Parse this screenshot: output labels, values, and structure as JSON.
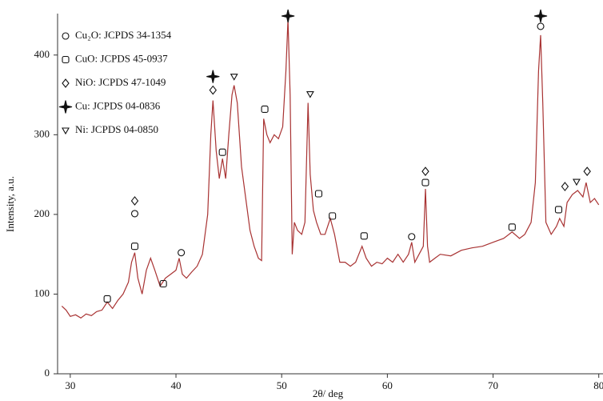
{
  "chart_data": {
    "type": "line",
    "x_label": "2θ/ deg",
    "y_label": "Intensity, a.u.",
    "xlim": [
      28.8,
      80.4
    ],
    "ylim": [
      0,
      452
    ],
    "xticks": [
      30,
      40,
      50,
      60,
      70,
      80
    ],
    "yticks": [
      0,
      100,
      200,
      300,
      400
    ],
    "pattern": {
      "color": "#a83232",
      "x": [
        29.2,
        29.6,
        30,
        30.5,
        31,
        31.5,
        32,
        32.5,
        33,
        33.5,
        34,
        34.5,
        35,
        35.5,
        35.8,
        36.1,
        36.4,
        36.8,
        37.2,
        37.6,
        38,
        38.5,
        39,
        39.5,
        40,
        40.3,
        40.6,
        41,
        41.5,
        42,
        42.5,
        43,
        43.3,
        43.5,
        43.8,
        44.1,
        44.4,
        44.7,
        45,
        45.3,
        45.5,
        45.8,
        46.2,
        46.6,
        47,
        47.4,
        47.8,
        48.1,
        48.3,
        48.6,
        48.9,
        49.3,
        49.7,
        50.1,
        50.4,
        50.6,
        50.8,
        51,
        51.2,
        51.5,
        51.9,
        52.2,
        52.5,
        52.7,
        53,
        53.3,
        53.7,
        54.1,
        54.6,
        55,
        55.5,
        56,
        56.5,
        57,
        57.6,
        58,
        58.5,
        59,
        59.5,
        60,
        60.5,
        61,
        61.5,
        62,
        62.3,
        62.6,
        63,
        63.4,
        63.6,
        63.8,
        64,
        64.5,
        65,
        66,
        67,
        68,
        69,
        70,
        71,
        71.8,
        72.5,
        73,
        73.6,
        74,
        74.3,
        74.5,
        74.7,
        75,
        75.5,
        76,
        76.3,
        76.7,
        77,
        77.5,
        78,
        78.5,
        78.8,
        79.2,
        79.6,
        80
      ],
      "y": [
        85,
        80,
        72,
        74,
        70,
        75,
        73,
        78,
        80,
        90,
        82,
        92,
        100,
        115,
        140,
        152,
        120,
        100,
        130,
        145,
        130,
        110,
        120,
        125,
        130,
        145,
        125,
        120,
        128,
        135,
        150,
        200,
        300,
        343,
        280,
        245,
        270,
        245,
        300,
        350,
        362,
        340,
        260,
        220,
        180,
        160,
        145,
        142,
        320,
        300,
        290,
        300,
        295,
        310,
        380,
        445,
        350,
        150,
        190,
        180,
        175,
        190,
        340,
        250,
        205,
        190,
        175,
        175,
        195,
        175,
        140,
        140,
        135,
        140,
        160,
        145,
        135,
        140,
        138,
        145,
        140,
        150,
        140,
        150,
        165,
        140,
        150,
        160,
        232,
        160,
        140,
        145,
        150,
        148,
        155,
        158,
        160,
        165,
        170,
        178,
        170,
        175,
        190,
        240,
        380,
        425,
        340,
        190,
        175,
        185,
        195,
        185,
        215,
        225,
        230,
        222,
        240,
        215,
        220,
        212
      ]
    },
    "phases": [
      {
        "name": "Cu₂O: JCPDS 34-1354",
        "marker": "circle",
        "x": [
          36.1,
          40.5,
          62.3,
          74.5
        ],
        "y": [
          201,
          152,
          172,
          436
        ]
      },
      {
        "name": "CuO: JCPDS 45-0937",
        "marker": "square",
        "x": [
          33.5,
          36.1,
          38.8,
          44.4,
          48.4,
          53.5,
          54.8,
          57.8,
          63.6,
          71.8,
          76.2
        ],
        "y": [
          94,
          160,
          113,
          278,
          332,
          226,
          198,
          173,
          240,
          184,
          206
        ]
      },
      {
        "name": "NiO: JCPDS 47-1049",
        "marker": "diamond",
        "x": [
          36.1,
          43.5,
          63.6,
          76.8,
          78.9
        ],
        "y": [
          217,
          356,
          254,
          235,
          254
        ]
      },
      {
        "name": "Cu: JCPDS 04-0836",
        "marker": "star",
        "x": [
          43.5,
          50.6,
          74.5
        ],
        "y": [
          373,
          449,
          449
        ]
      },
      {
        "name": "Ni: JCPDS 04-0850",
        "marker": "triangle",
        "x": [
          45.5,
          52.7,
          77.9
        ],
        "y": [
          373,
          351,
          241
        ]
      }
    ]
  }
}
